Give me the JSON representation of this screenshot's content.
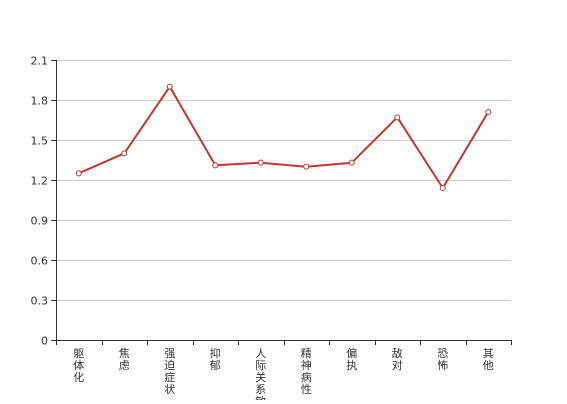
{
  "chart_data": {
    "type": "line",
    "title": "",
    "xlabel": "",
    "ylabel": "",
    "categories": [
      "躯体化",
      "焦虑",
      "强迫症状",
      "抑郁",
      "人际关系敏感",
      "精神病性",
      "偏执",
      "敌对",
      "恐怖",
      "其他"
    ],
    "series": [
      {
        "values": [
          1.25,
          1.4,
          1.9,
          1.31,
          1.33,
          1.3,
          1.33,
          1.67,
          1.14,
          1.71
        ]
      }
    ],
    "ylim": [
      0,
      2.1
    ],
    "yticks": [
      "0",
      "0.3",
      "0.6",
      "0.9",
      "1.2",
      "1.5",
      "1.8",
      "2.1"
    ],
    "grid": true,
    "legend": "none",
    "colors": {
      "line": "#c23531",
      "point_fill": "#ffffff",
      "grid": "#cccccc",
      "axis": "#333333",
      "text": "#333333"
    }
  }
}
